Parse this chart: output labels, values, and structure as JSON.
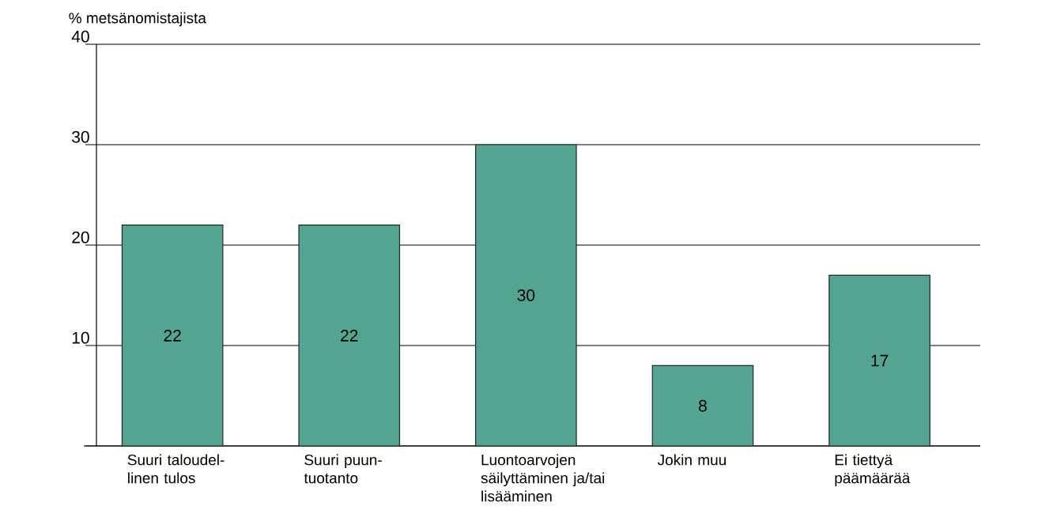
{
  "chart_data": {
    "type": "bar",
    "ylabel": "% metsänomistajista",
    "categories": [
      "Suuri taloudel-linen tulos",
      "Suuri puun-tuotanto",
      "Luontoarvojen säilyttäminen ja/tai lisääminen",
      "Jokin muu",
      "Ei tiettyä päämäärää"
    ],
    "values": [
      22,
      22,
      30,
      8,
      17
    ],
    "color": "#52a691",
    "ylim": [
      0,
      40
    ],
    "yticks": [
      {
        "value": 0,
        "label": null
      },
      10,
      20,
      30,
      40
    ],
    "grid": "y",
    "data_labels": true
  }
}
